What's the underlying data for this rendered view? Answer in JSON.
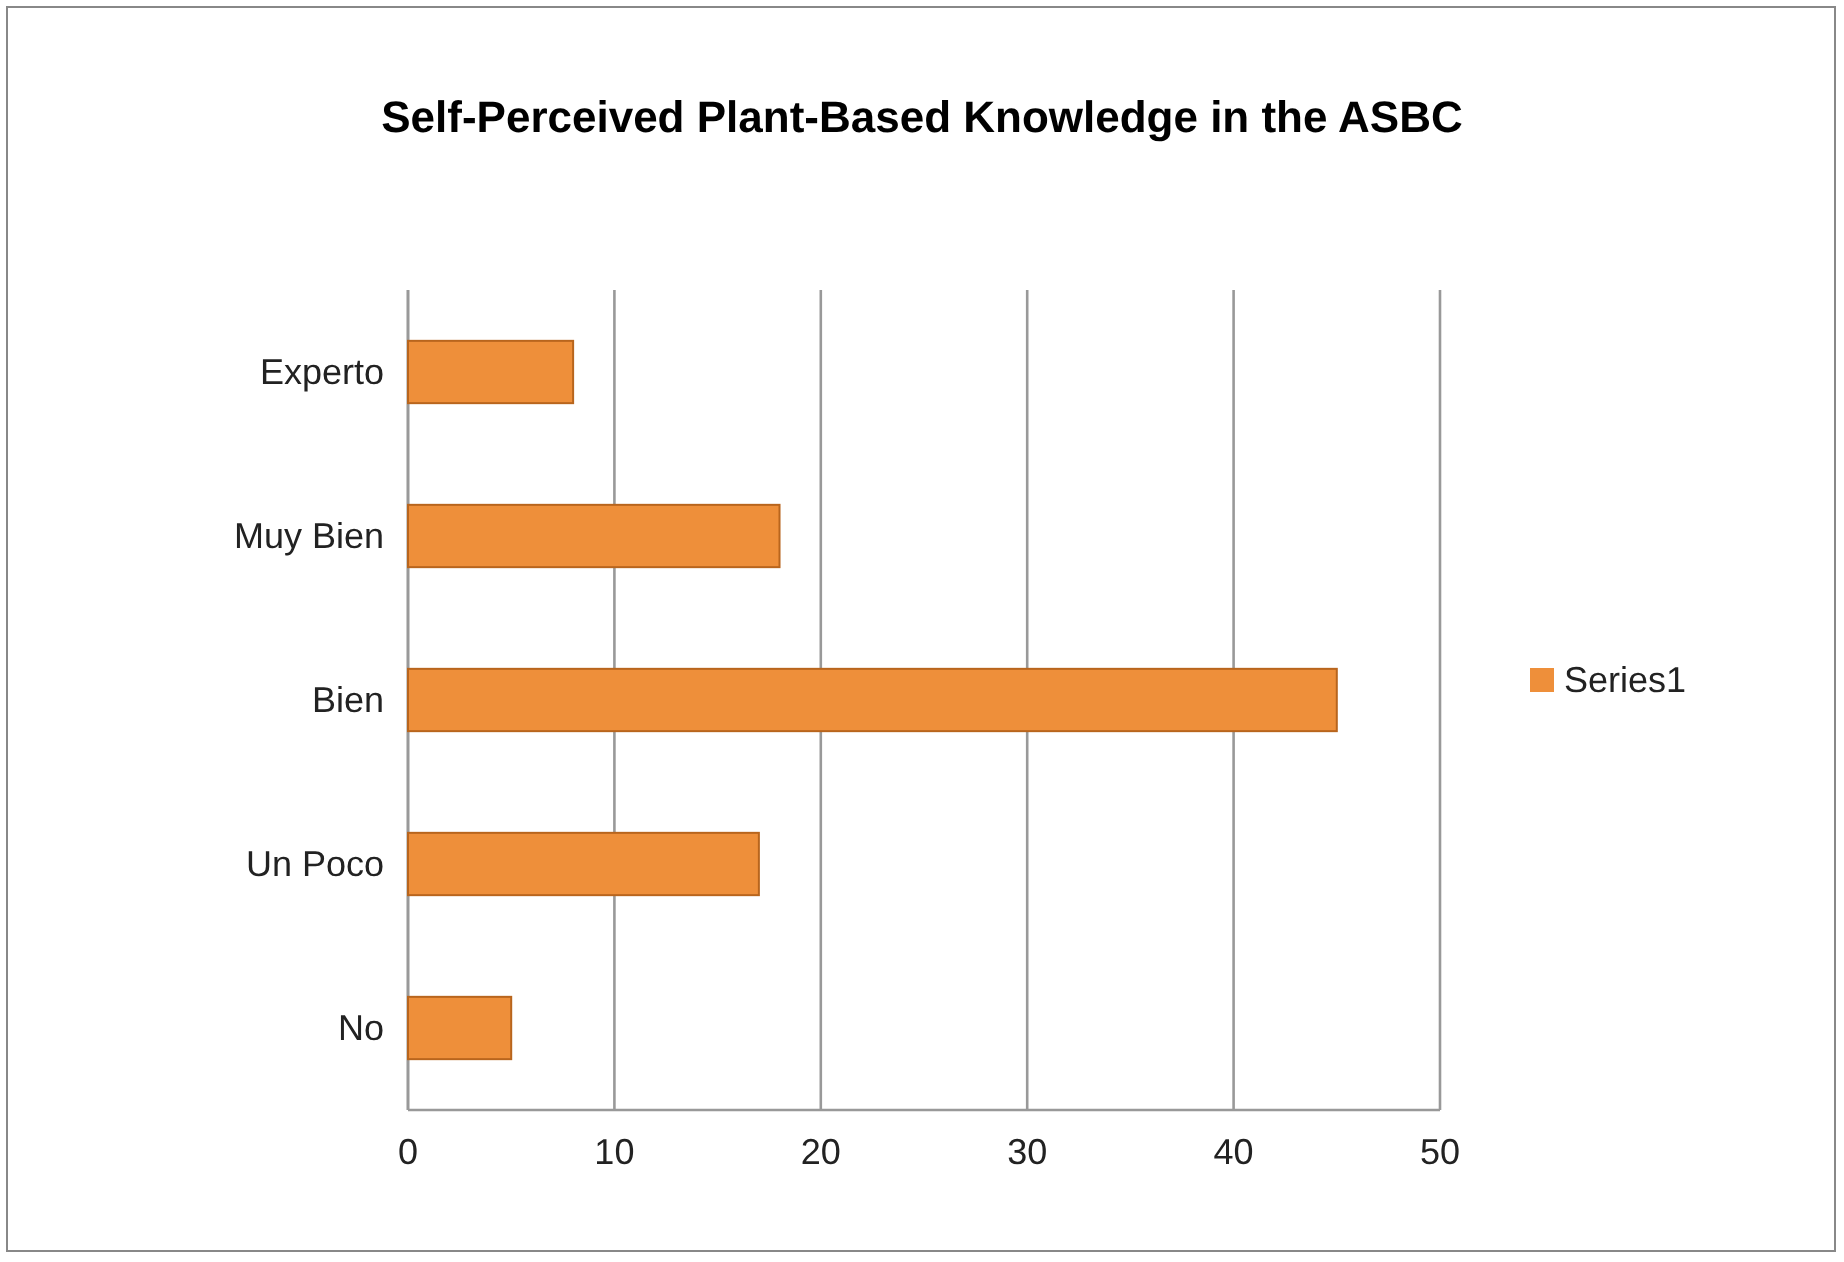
{
  "chart_data": {
    "type": "bar",
    "orientation": "horizontal",
    "title": "Self-Perceived Plant-Based Knowledge in the ASBC",
    "categories": [
      "Experto",
      "Muy Bien",
      "Bien",
      "Un Poco",
      "No"
    ],
    "series": [
      {
        "name": "Series1",
        "color": "#ee8f3a",
        "values": [
          8,
          18,
          45,
          17,
          5
        ]
      }
    ],
    "xlim": [
      0,
      50
    ],
    "xticks": [
      0,
      10,
      20,
      30,
      40,
      50
    ],
    "grid": "x",
    "legend": "right"
  }
}
